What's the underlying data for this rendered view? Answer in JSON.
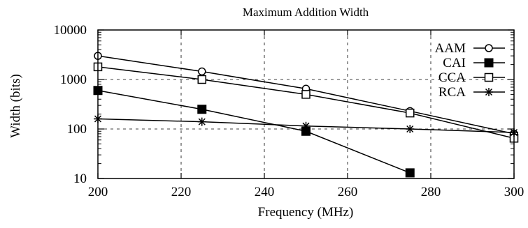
{
  "chart_data": {
    "type": "line",
    "title": "Maximum Addition Width",
    "xlabel": "Frequency (MHz)",
    "ylabel": "Width (bits)",
    "x": [
      200,
      225,
      250,
      275,
      300
    ],
    "xlim": [
      200,
      300
    ],
    "xticks": [
      "200",
      "220",
      "240",
      "260",
      "280",
      "300"
    ],
    "ylim": [
      10,
      10000
    ],
    "yscale": "log",
    "yticks": [
      "10",
      "100",
      "1000",
      "10000"
    ],
    "grid": true,
    "legend": "top-right",
    "series": [
      {
        "name": "AAM",
        "marker": "open-circle",
        "values": [
          3000,
          1450,
          650,
          230,
          80
        ]
      },
      {
        "name": "CAI",
        "marker": "filled-square",
        "values": [
          600,
          250,
          90,
          13,
          null
        ]
      },
      {
        "name": "CCA",
        "marker": "open-square",
        "values": [
          1800,
          1000,
          500,
          210,
          65
        ]
      },
      {
        "name": "RCA",
        "marker": "star",
        "values": [
          160,
          140,
          115,
          100,
          85
        ]
      }
    ]
  }
}
